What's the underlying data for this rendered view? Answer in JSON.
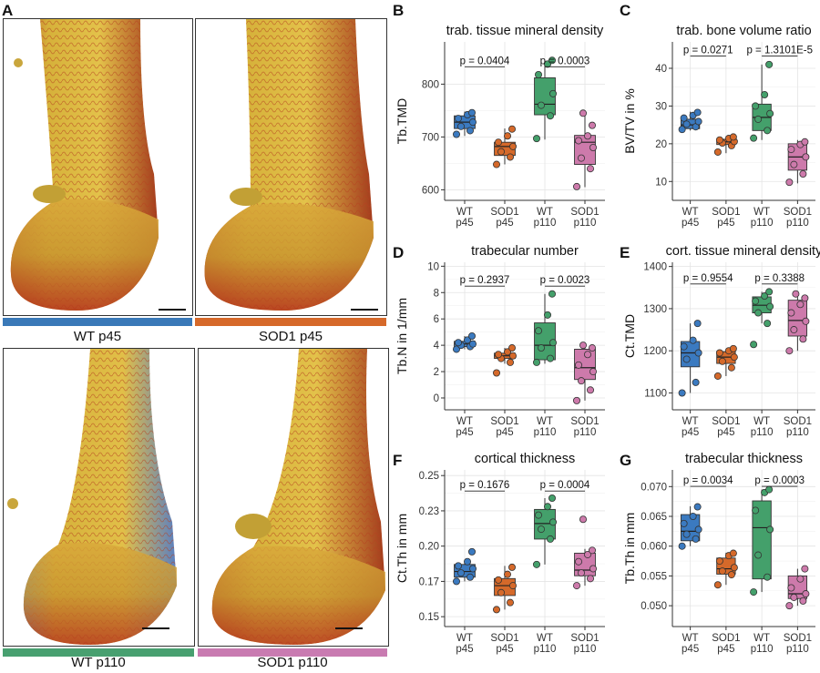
{
  "panels": {
    "A": {
      "letter": "A",
      "images": [
        {
          "caption": "WT p45",
          "bar_color": "#3a79b8"
        },
        {
          "caption": "SOD1 p45",
          "bar_color": "#d6692a"
        },
        {
          "caption": "WT p110",
          "bar_color": "#48a070"
        },
        {
          "caption": "SOD1 p110",
          "bar_color": "#c97bb1"
        }
      ]
    },
    "B": {
      "letter": "B"
    },
    "C": {
      "letter": "C"
    },
    "D": {
      "letter": "D"
    },
    "E": {
      "letter": "E"
    },
    "F": {
      "letter": "F"
    },
    "G": {
      "letter": "G"
    }
  },
  "colors": {
    "WT p45": "#3b7ac0",
    "SOD1 p45": "#d5692a",
    "WT p110": "#44a06b",
    "SOD1 p110": "#cd7aab"
  },
  "chart_data": [
    {
      "id": "B",
      "type": "box",
      "title": "trab. tissue mineral density",
      "ylabel": "Tb.TMD",
      "ylim": [
        580,
        880
      ],
      "yticks": [
        600,
        700,
        800
      ],
      "categories": [
        "WT\np45",
        "SOD1\np45",
        "WT\np110",
        "SOD1\np110"
      ],
      "groups": [
        {
          "q1": 716,
          "median": 728,
          "q3": 740,
          "whisker_low": 702,
          "whisker_high": 748,
          "points": [
            705,
            712,
            720,
            728,
            735,
            742,
            746
          ]
        },
        {
          "q1": 665,
          "median": 682,
          "q3": 690,
          "whisker_low": 648,
          "whisker_high": 716,
          "points": [
            648,
            662,
            672,
            682,
            690,
            702,
            715
          ]
        },
        {
          "q1": 742,
          "median": 762,
          "q3": 812,
          "whisker_low": 695,
          "whisker_high": 845,
          "points": [
            697,
            740,
            760,
            782,
            818,
            838,
            845
          ]
        },
        {
          "q1": 648,
          "median": 690,
          "q3": 703,
          "whisker_low": 605,
          "whisker_high": 748,
          "points": [
            606,
            640,
            660,
            680,
            693,
            702,
            722,
            745
          ]
        }
      ],
      "annotations": [
        {
          "text": "p = 0.0404",
          "between": [
            0,
            1
          ],
          "y": 838
        },
        {
          "text": "p = 0.0003",
          "between": [
            2,
            3
          ],
          "y": 838
        }
      ]
    },
    {
      "id": "C",
      "type": "box",
      "title": "trab. bone volume ratio",
      "ylabel": "BV/TV in %",
      "ylim": [
        5,
        47
      ],
      "yticks": [
        10,
        20,
        30,
        40
      ],
      "categories": [
        "WT\np45",
        "SOD1\np45",
        "WT\np110",
        "SOD1\np110"
      ],
      "groups": [
        {
          "q1": 24,
          "median": 25,
          "q3": 26.5,
          "whisker_low": 23.5,
          "whisker_high": 28.5,
          "points": [
            23.8,
            24.5,
            25.2,
            25.9,
            26.8,
            27.5,
            28.3
          ]
        },
        {
          "q1": 19.8,
          "median": 20.5,
          "q3": 21.2,
          "whisker_low": 17.5,
          "whisker_high": 22,
          "points": [
            17.8,
            19.5,
            20.2,
            20.6,
            21,
            21.4,
            21.8
          ]
        },
        {
          "q1": 23.5,
          "median": 27,
          "q3": 30.5,
          "whisker_low": 21,
          "whisker_high": 41,
          "points": [
            21.5,
            23.5,
            26.5,
            28,
            30,
            33,
            41
          ]
        },
        {
          "q1": 13,
          "median": 16.5,
          "q3": 20,
          "whisker_low": 9.5,
          "whisker_high": 21,
          "points": [
            9.8,
            12,
            14.5,
            16.5,
            18.5,
            19.8,
            20.5
          ]
        }
      ],
      "annotations": [
        {
          "text": "p = 0.0271",
          "between": [
            0,
            1
          ],
          "y": 44
        },
        {
          "text": "p = 1.3101E-5",
          "between": [
            2,
            3
          ],
          "y": 44
        }
      ]
    },
    {
      "id": "D",
      "type": "box",
      "title": "trabecular number",
      "ylabel": "Tb.N in 1/mm",
      "ylim": [
        -0.9,
        10.3
      ],
      "yticks": [
        0,
        2,
        4,
        6,
        8,
        10
      ],
      "categories": [
        "WT\np45",
        "SOD1\np45",
        "WT\np110",
        "SOD1\np110"
      ],
      "groups": [
        {
          "q1": 3.9,
          "median": 4.1,
          "q3": 4.3,
          "whisker_low": 3.7,
          "whisker_high": 4.7,
          "points": [
            3.7,
            3.9,
            4.0,
            4.1,
            4.2,
            4.4,
            4.7
          ]
        },
        {
          "q1": 3.0,
          "median": 3.2,
          "q3": 3.4,
          "whisker_low": 2.6,
          "whisker_high": 3.8,
          "points": [
            1.9,
            2.7,
            3.0,
            3.2,
            3.3,
            3.5,
            3.8
          ]
        },
        {
          "q1": 2.9,
          "median": 4.0,
          "q3": 5.7,
          "whisker_low": 2.6,
          "whisker_high": 7.9,
          "points": [
            2.7,
            3.0,
            3.8,
            4.2,
            5.1,
            6.3,
            7.9
          ]
        },
        {
          "q1": 1.4,
          "median": 2.3,
          "q3": 3.7,
          "whisker_low": -0.2,
          "whisker_high": 4.0,
          "points": [
            -0.2,
            0.6,
            1.3,
            2.0,
            2.5,
            3.3,
            3.8,
            4.0
          ]
        }
      ],
      "annotations": [
        {
          "text": "p = 0.2937",
          "between": [
            0,
            1
          ],
          "y": 8.7
        },
        {
          "text": "p = 0.0023",
          "between": [
            2,
            3
          ],
          "y": 8.7
        }
      ]
    },
    {
      "id": "E",
      "type": "box",
      "title": "cort. tissue mineral density",
      "ylabel": "Ct.TMD",
      "ylim": [
        1060,
        1410
      ],
      "yticks": [
        1100,
        1200,
        1300,
        1400
      ],
      "categories": [
        "WT\np45",
        "SOD1\np45",
        "WT\np110",
        "SOD1\np110"
      ],
      "groups": [
        {
          "q1": 1162,
          "median": 1195,
          "q3": 1222,
          "whisker_low": 1100,
          "whisker_high": 1265,
          "points": [
            1100,
            1125,
            1180,
            1195,
            1210,
            1225,
            1265
          ]
        },
        {
          "q1": 1170,
          "median": 1185,
          "q3": 1198,
          "whisker_low": 1140,
          "whisker_high": 1205,
          "points": [
            1140,
            1160,
            1175,
            1185,
            1195,
            1200,
            1205
          ]
        },
        {
          "q1": 1290,
          "median": 1308,
          "q3": 1328,
          "whisker_low": 1265,
          "whisker_high": 1340,
          "points": [
            1215,
            1265,
            1290,
            1305,
            1318,
            1330,
            1340
          ]
        },
        {
          "q1": 1235,
          "median": 1272,
          "q3": 1320,
          "whisker_low": 1200,
          "whisker_high": 1335,
          "points": [
            1200,
            1228,
            1250,
            1270,
            1290,
            1310,
            1325,
            1335
          ]
        }
      ],
      "annotations": [
        {
          "text": "p = 0.9554",
          "between": [
            0,
            1
          ],
          "y": 1365
        },
        {
          "text": "p = 0.3388",
          "between": [
            2,
            3
          ],
          "y": 1365
        }
      ]
    },
    {
      "id": "F",
      "type": "box",
      "title": "cortical thickness",
      "ylabel": "Ct.Th in mm",
      "ylim": [
        0.143,
        0.254
      ],
      "yticks": [
        0.15,
        0.175,
        0.2,
        0.225,
        0.25
      ],
      "categories": [
        "WT\np45",
        "SOD1\np45",
        "WT\np110",
        "SOD1\np110"
      ],
      "groups": [
        {
          "q1": 0.178,
          "median": 0.182,
          "q3": 0.187,
          "whisker_low": 0.175,
          "whisker_high": 0.19,
          "points": [
            0.175,
            0.178,
            0.181,
            0.184,
            0.186,
            0.189,
            0.196
          ]
        },
        {
          "q1": 0.165,
          "median": 0.172,
          "q3": 0.177,
          "whisker_low": 0.155,
          "whisker_high": 0.186,
          "points": [
            0.155,
            0.16,
            0.167,
            0.172,
            0.176,
            0.18,
            0.185
          ]
        },
        {
          "q1": 0.205,
          "median": 0.216,
          "q3": 0.226,
          "whisker_low": 0.187,
          "whisker_high": 0.234,
          "points": [
            0.187,
            0.205,
            0.212,
            0.217,
            0.222,
            0.228,
            0.234
          ]
        },
        {
          "q1": 0.179,
          "median": 0.183,
          "q3": 0.195,
          "whisker_low": 0.172,
          "whisker_high": 0.198,
          "points": [
            0.172,
            0.177,
            0.181,
            0.184,
            0.189,
            0.194,
            0.197,
            0.219
          ]
        }
      ],
      "annotations": [
        {
          "text": "p = 0.1676",
          "between": [
            0,
            1
          ],
          "y": 0.241
        },
        {
          "text": "p = 0.0004",
          "between": [
            2,
            3
          ],
          "y": 0.241
        }
      ]
    },
    {
      "id": "G",
      "type": "box",
      "title": "trabecular thickness",
      "ylabel": "Tb.Th in mm",
      "ylim": [
        0.0465,
        0.0728
      ],
      "yticks": [
        0.05,
        0.055,
        0.06,
        0.065,
        0.07
      ],
      "categories": [
        "WT\np45",
        "SOD1\np45",
        "WT\np110",
        "SOD1\np110"
      ],
      "groups": [
        {
          "q1": 0.0609,
          "median": 0.0625,
          "q3": 0.0653,
          "whisker_low": 0.06,
          "whisker_high": 0.0667,
          "points": [
            0.06,
            0.0612,
            0.062,
            0.0628,
            0.0638,
            0.065,
            0.0666
          ]
        },
        {
          "q1": 0.0553,
          "median": 0.0562,
          "q3": 0.058,
          "whisker_low": 0.0535,
          "whisker_high": 0.0589,
          "points": [
            0.0535,
            0.0552,
            0.0558,
            0.0564,
            0.0575,
            0.0584,
            0.0588
          ]
        },
        {
          "q1": 0.0545,
          "median": 0.0631,
          "q3": 0.0676,
          "whisker_low": 0.0523,
          "whisker_high": 0.0695,
          "points": [
            0.0523,
            0.0548,
            0.0585,
            0.0628,
            0.066,
            0.069,
            0.0695
          ]
        },
        {
          "q1": 0.0512,
          "median": 0.052,
          "q3": 0.055,
          "whisker_low": 0.05,
          "whisker_high": 0.0562,
          "points": [
            0.05,
            0.0508,
            0.0514,
            0.052,
            0.053,
            0.0545,
            0.0562
          ]
        }
      ],
      "annotations": [
        {
          "text": "p = 0.0034",
          "between": [
            0,
            1
          ],
          "y": 0.0705
        },
        {
          "text": "p = 0.0003",
          "between": [
            2,
            3
          ],
          "y": 0.0705
        }
      ]
    }
  ]
}
